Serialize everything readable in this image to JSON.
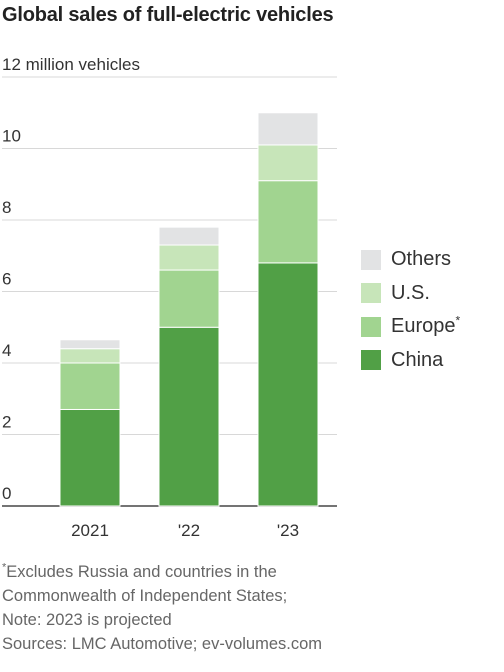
{
  "title": "Global sales of full-electric vehicles",
  "chart_data": {
    "type": "bar",
    "stacked": true,
    "title": "Global sales of full-electric vehicles",
    "ylabel": "12 million vehicles",
    "categories": [
      "2021",
      "'22",
      "'23"
    ],
    "yticks": [
      0,
      2,
      4,
      6,
      8,
      10,
      12
    ],
    "ytick_labels": [
      "0",
      "2",
      "4",
      "6",
      "8",
      "10",
      "12 million vehicles"
    ],
    "ylim": [
      0,
      12
    ],
    "grid": true,
    "legend_position": "right",
    "series": [
      {
        "name": "China",
        "values": [
          2.7,
          5.0,
          6.8
        ],
        "color": "#51a046"
      },
      {
        "name": "Europe",
        "marker": "*",
        "values": [
          1.3,
          1.6,
          2.3
        ],
        "color": "#a1d490"
      },
      {
        "name": "U.S.",
        "values": [
          0.4,
          0.7,
          1.0
        ],
        "color": "#c7e5b9"
      },
      {
        "name": "Others",
        "values": [
          0.25,
          0.5,
          0.9
        ],
        "color": "#e2e3e4"
      }
    ]
  },
  "footnotes": [
    "Excludes Russia and countries in the",
    "Commonwealth of Independent States;",
    "Note: 2023 is projected",
    "Sources: LMC Automotive; ev-volumes.com"
  ],
  "footnote_marker": "*"
}
